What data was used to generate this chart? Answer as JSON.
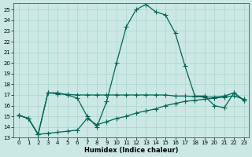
{
  "bg_color": "#cce8e4",
  "grid_color": "#aad4cc",
  "line_color": "#006655",
  "xlabel": "Humidex (Indice chaleur)",
  "xlim_min": -0.5,
  "xlim_max": 23.5,
  "ylim_min": 13,
  "ylim_max": 25.6,
  "yticks": [
    13,
    14,
    15,
    16,
    17,
    18,
    19,
    20,
    21,
    22,
    23,
    24,
    25
  ],
  "xticks": [
    0,
    1,
    2,
    3,
    4,
    5,
    6,
    7,
    8,
    9,
    10,
    11,
    12,
    13,
    14,
    15,
    16,
    17,
    18,
    19,
    20,
    21,
    22,
    23
  ],
  "curve_peak_x": [
    0,
    1,
    2,
    3,
    4,
    5,
    6,
    7,
    8,
    9,
    10,
    11,
    12,
    13,
    14,
    15,
    16,
    17,
    18,
    19,
    20,
    21,
    22,
    23
  ],
  "curve_peak_y": [
    15.1,
    14.8,
    13.3,
    17.2,
    17.2,
    17.0,
    16.7,
    15.0,
    14.0,
    16.4,
    20.0,
    23.4,
    25.0,
    25.5,
    24.8,
    24.5,
    22.8,
    19.7,
    16.9,
    16.9,
    16.0,
    15.8,
    17.2,
    16.5
  ],
  "curve_flat_x": [
    0,
    1,
    2,
    3,
    4,
    5,
    6,
    7,
    8,
    9,
    10,
    11,
    12,
    13,
    14,
    15,
    16,
    17,
    18,
    19,
    20,
    21,
    22,
    23
  ],
  "curve_flat_y": [
    15.1,
    14.8,
    13.3,
    17.2,
    17.1,
    17.05,
    17.0,
    17.0,
    17.0,
    17.0,
    17.0,
    17.0,
    17.0,
    17.0,
    17.0,
    17.0,
    16.9,
    16.9,
    16.85,
    16.8,
    16.8,
    16.9,
    17.2,
    16.5
  ],
  "curve_low_x": [
    0,
    1,
    2,
    3,
    4,
    5,
    6,
    7,
    8,
    9,
    10,
    11,
    12,
    13,
    14,
    15,
    16,
    17,
    18,
    19,
    20,
    21,
    22,
    23
  ],
  "curve_low_y": [
    15.1,
    14.8,
    13.3,
    13.4,
    13.5,
    13.6,
    13.7,
    14.8,
    14.2,
    14.5,
    14.8,
    15.0,
    15.3,
    15.5,
    15.7,
    16.0,
    16.2,
    16.4,
    16.5,
    16.6,
    16.7,
    16.8,
    16.9,
    16.6
  ]
}
